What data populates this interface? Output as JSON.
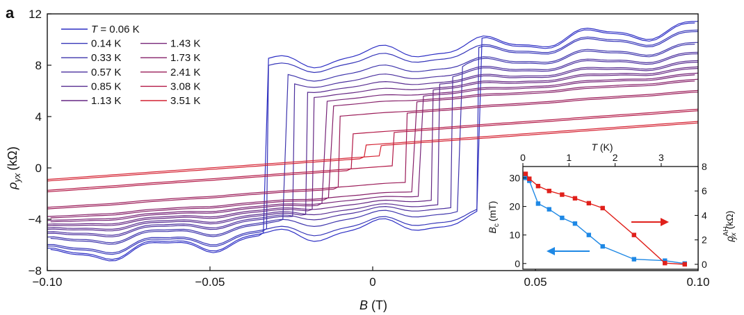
{
  "chart_data": [
    {
      "type": "line",
      "panel_label": "a",
      "xlabel_var": "B",
      "xlabel_unit": "(T)",
      "ylabel_var": "ρ",
      "ylabel_sub": "yx",
      "ylabel_unit": "(kΩ)",
      "xlim": [
        -0.1,
        0.1
      ],
      "ylim": [
        -8,
        12
      ],
      "x_ticks": [
        -0.1,
        -0.05,
        0,
        0.05,
        0.1
      ],
      "x_tick_labels": [
        "−0.10",
        "−0.05",
        "0",
        "0.05",
        "0.10"
      ],
      "y_ticks": [
        -8,
        -4,
        0,
        4,
        8,
        12
      ],
      "y_tick_labels": [
        "−8",
        "−4",
        "0",
        "4",
        "8",
        "12"
      ],
      "legend_first_prefix": "T = ",
      "legend_position": "top-left",
      "series": [
        {
          "name": "0.06 K",
          "T": 0.06,
          "color": "#2b2dc4",
          "Bc": 0.033,
          "slope": 22,
          "y_at_B0": 2.0,
          "jump": 13.4
        },
        {
          "name": "0.14 K",
          "T": 0.14,
          "color": "#3434b8",
          "Bc": 0.032,
          "slope": 21,
          "y_at_B0": 1.9,
          "jump": 12.6
        },
        {
          "name": "0.33 K",
          "T": 0.33,
          "color": "#3d34ac",
          "Bc": 0.027,
          "slope": 20,
          "y_at_B0": 1.8,
          "jump": 11.2
        },
        {
          "name": "0.57 K",
          "T": 0.57,
          "color": "#4a2f9e",
          "Bc": 0.024,
          "slope": 19,
          "y_at_B0": 1.7,
          "jump": 10.2
        },
        {
          "name": "0.85 K",
          "T": 0.85,
          "color": "#572b90",
          "Bc": 0.02,
          "slope": 18,
          "y_at_B0": 1.6,
          "jump": 9.4
        },
        {
          "name": "1.13 K",
          "T": 1.13,
          "color": "#652783",
          "Bc": 0.018,
          "slope": 18,
          "y_at_B0": 1.55,
          "jump": 8.6
        },
        {
          "name": "1.43 K",
          "T": 1.43,
          "color": "#752377",
          "Bc": 0.015,
          "slope": 18,
          "y_at_B0": 1.5,
          "jump": 7.8
        },
        {
          "name": "1.73 K",
          "T": 1.73,
          "color": "#861f68",
          "Bc": 0.013,
          "slope": 18,
          "y_at_B0": 1.45,
          "jump": 7.0
        },
        {
          "name": "2.41 K",
          "T": 2.41,
          "color": "#9a1b58",
          "Bc": 0.01,
          "slope": 18,
          "y_at_B0": 1.4,
          "jump": 5.4
        },
        {
          "name": "3.08 K",
          "T": 3.08,
          "color": "#b21745",
          "Bc": 0.006,
          "slope": 18,
          "y_at_B0": 1.35,
          "jump": 2.6
        },
        {
          "name": "3.51 K",
          "T": 3.51,
          "color": "#d42030",
          "Bc": 0.002,
          "slope": 18,
          "y_at_B0": 1.3,
          "jump": 0.8
        }
      ]
    },
    {
      "type": "line",
      "role": "inset",
      "xlabel_var": "T",
      "xlabel_unit": "(K)",
      "xlim": [
        0,
        3.8
      ],
      "x_ticks": [
        0,
        1,
        2,
        3
      ],
      "ylabel_left_var": "B",
      "ylabel_left_sub": "c",
      "ylabel_left_unit": "(mT)",
      "ylim_left": [
        -2,
        34
      ],
      "y_ticks_left": [
        0,
        10,
        20,
        30
      ],
      "ylabel_right_var": "ρ",
      "ylabel_right_sub": "yx",
      "ylabel_right_sup": "AH",
      "ylabel_right_unit": "(kΩ)",
      "ylim_right": [
        -0.4,
        8
      ],
      "y_ticks_right": [
        0,
        2,
        4,
        6,
        8
      ],
      "series": [
        {
          "axis": "left",
          "color": "#1e88e5",
          "x": [
            0.06,
            0.14,
            0.33,
            0.57,
            0.85,
            1.13,
            1.43,
            1.73,
            2.41,
            3.08,
            3.51
          ],
          "y": [
            30,
            29,
            21,
            19,
            16,
            14,
            10,
            6,
            1.5,
            1,
            0
          ]
        },
        {
          "axis": "right",
          "color": "#e0201b",
          "x": [
            0.06,
            0.14,
            0.33,
            0.57,
            0.85,
            1.13,
            1.43,
            1.73,
            2.41,
            3.08,
            3.51
          ],
          "y": [
            7.4,
            7.0,
            6.4,
            6.0,
            5.7,
            5.4,
            5.0,
            4.6,
            2.4,
            0.1,
            0
          ]
        }
      ]
    }
  ]
}
